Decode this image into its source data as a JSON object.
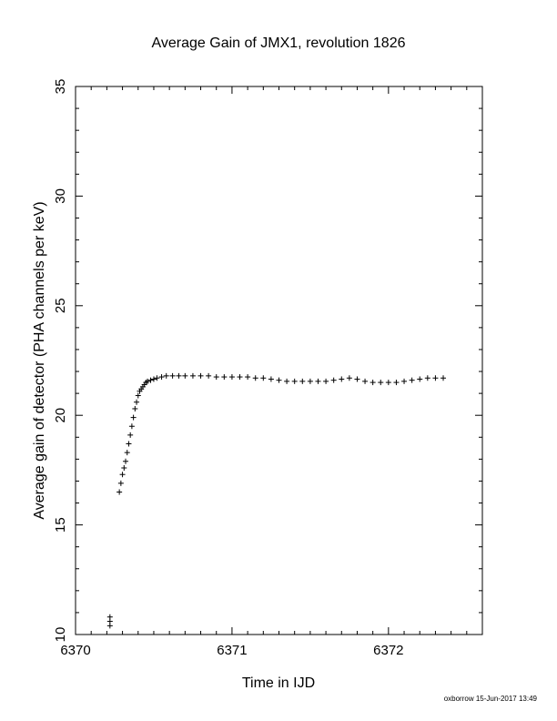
{
  "chart_data": {
    "type": "scatter",
    "title": "Average Gain of JMX1, revolution 1826",
    "xlabel": "Time in IJD",
    "ylabel": "Average gain of detector (PHA channels per keV)",
    "xlim": [
      6370,
      6372.6
    ],
    "ylim": [
      10,
      35
    ],
    "x_ticks": [
      6370,
      6371,
      6372
    ],
    "y_ticks": [
      10,
      15,
      20,
      25,
      30,
      35
    ],
    "x_tick_labels": [
      "6370",
      "6371",
      "6372"
    ],
    "y_tick_labels": [
      "10",
      "15",
      "20",
      "25",
      "30",
      "35"
    ],
    "marker": "+",
    "grid": false,
    "series": [
      {
        "x": [
          6370.22,
          6370.22,
          6370.22,
          6370.28,
          6370.29,
          6370.3,
          6370.31,
          6370.32,
          6370.33,
          6370.34,
          6370.35,
          6370.36,
          6370.37,
          6370.38,
          6370.39,
          6370.4,
          6370.41,
          6370.42,
          6370.43,
          6370.44,
          6370.45,
          6370.46,
          6370.48,
          6370.5,
          6370.52,
          6370.55,
          6370.58,
          6370.62,
          6370.66,
          6370.7,
          6370.75,
          6370.8,
          6370.85,
          6370.9,
          6370.95,
          6371.0,
          6371.05,
          6371.1,
          6371.15,
          6371.2,
          6371.25,
          6371.3,
          6371.35,
          6371.4,
          6371.45,
          6371.5,
          6371.55,
          6371.6,
          6371.65,
          6371.7,
          6371.75,
          6371.8,
          6371.85,
          6371.9,
          6371.95,
          6372.0,
          6372.05,
          6372.1,
          6372.15,
          6372.2,
          6372.25,
          6372.3,
          6372.35
        ],
        "y": [
          10.4,
          10.6,
          10.8,
          16.5,
          16.9,
          17.3,
          17.6,
          17.9,
          18.3,
          18.7,
          19.1,
          19.5,
          19.9,
          20.3,
          20.6,
          20.9,
          21.1,
          21.2,
          21.3,
          21.4,
          21.5,
          21.55,
          21.6,
          21.65,
          21.7,
          21.75,
          21.8,
          21.8,
          21.8,
          21.8,
          21.8,
          21.8,
          21.8,
          21.75,
          21.75,
          21.75,
          21.75,
          21.75,
          21.7,
          21.7,
          21.65,
          21.6,
          21.55,
          21.55,
          21.55,
          21.55,
          21.55,
          21.55,
          21.6,
          21.65,
          21.7,
          21.65,
          21.55,
          21.5,
          21.5,
          21.5,
          21.5,
          21.55,
          21.6,
          21.65,
          21.7,
          21.7,
          21.7
        ]
      }
    ]
  },
  "footer": {
    "credit": "oxborrow 15-Jun-2017 13:49"
  }
}
